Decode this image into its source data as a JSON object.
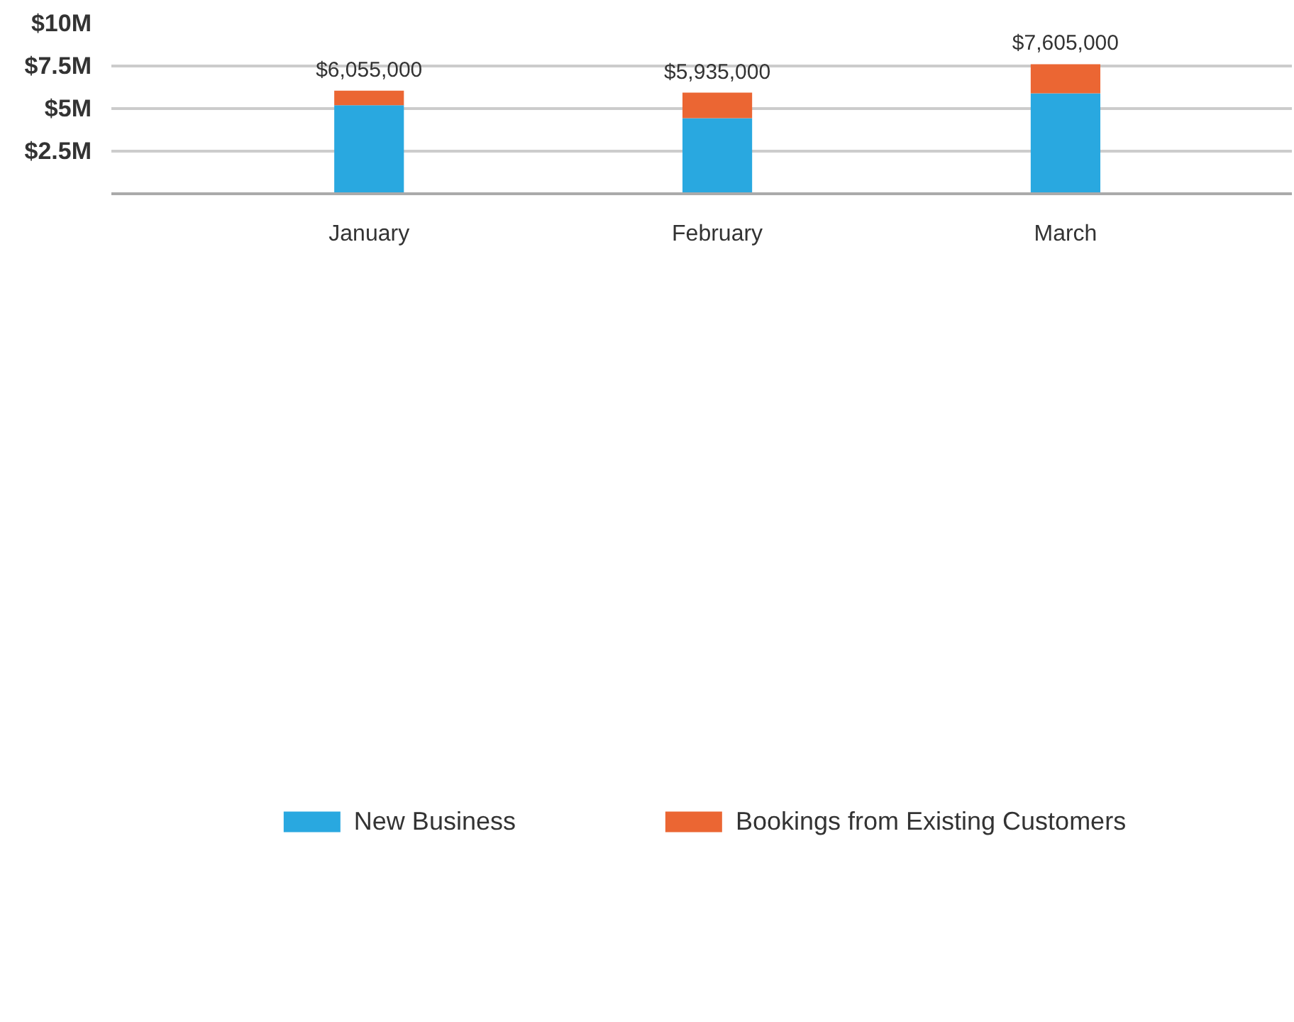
{
  "chart_data": {
    "type": "bar",
    "stacked": true,
    "categories": [
      "January",
      "February",
      "March"
    ],
    "series": [
      {
        "name": "New Business",
        "color": "#29a8e0",
        "values": [
          5.2,
          4.44,
          5.9
        ]
      },
      {
        "name": "Bookings from Existing Customers",
        "color": "#eb6633",
        "values": [
          0.855,
          1.495,
          1.705
        ]
      }
    ],
    "totals": [
      "$6,055,000",
      "$5,935,000",
      "$7,605,000"
    ],
    "ylim": [
      0,
      10
    ],
    "yticks": [
      {
        "value": 0,
        "label": null
      },
      {
        "value": 2.5,
        "label": "$2.5M"
      },
      {
        "value": 5,
        "label": "$5M"
      },
      {
        "value": 7.5,
        "label": "$7.5M"
      },
      {
        "value": 10,
        "label": "$10M"
      }
    ],
    "grid": "y",
    "legend": "bottom"
  }
}
